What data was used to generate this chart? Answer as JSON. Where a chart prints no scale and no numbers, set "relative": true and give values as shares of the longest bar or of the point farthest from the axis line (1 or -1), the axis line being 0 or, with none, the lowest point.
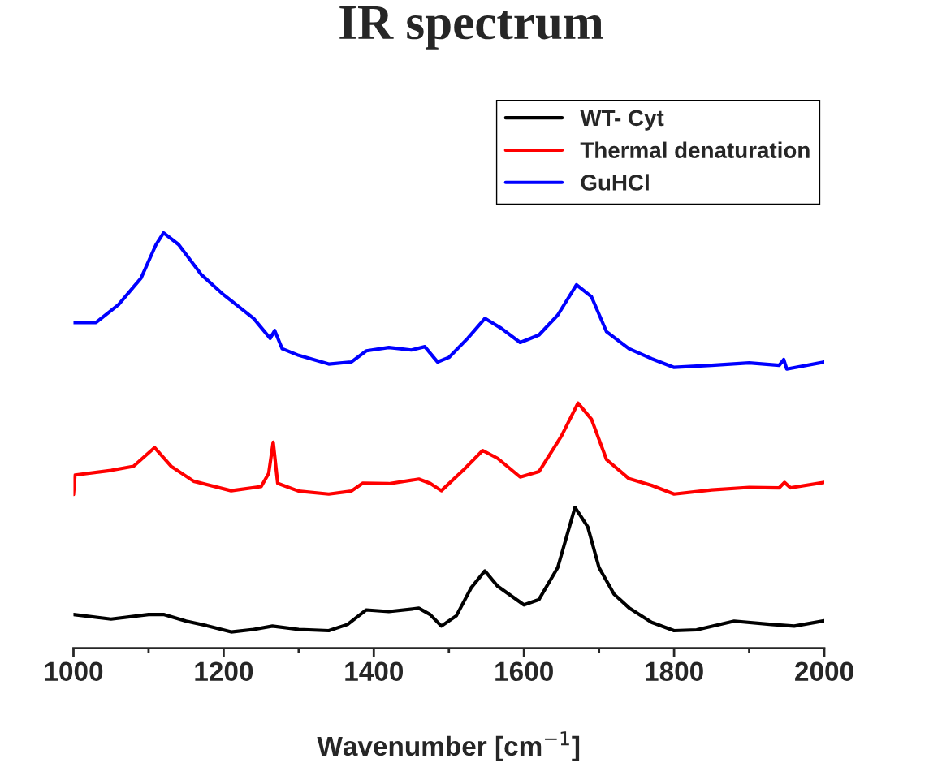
{
  "chart_data": {
    "type": "line",
    "title": "IR spectrum",
    "xlabel": "Wavenumber [cm$^{−1}$]",
    "relative": true,
    "xlim": [
      1000,
      2000
    ],
    "xticks": [
      1000,
      1200,
      1400,
      1600,
      1800,
      2000
    ],
    "grid": false,
    "legend": "top right",
    "marker": "none",
    "line_style": "solid",
    "series": [
      {
        "name": "WT- Cyt",
        "color": "#000000",
        "x": [
          1000,
          1050,
          1100,
          1120,
          1150,
          1180,
          1210,
          1240,
          1265,
          1300,
          1340,
          1365,
          1390,
          1420,
          1460,
          1475,
          1490,
          1510,
          1530,
          1548,
          1565,
          1600,
          1620,
          1645,
          1668,
          1685,
          1700,
          1720,
          1740,
          1770,
          1800,
          1830,
          1880,
          1930,
          1960,
          2000
        ],
        "values": [
          0.081,
          0.07,
          0.081,
          0.081,
          0.065,
          0.053,
          0.039,
          0.045,
          0.053,
          0.045,
          0.042,
          0.057,
          0.092,
          0.088,
          0.096,
          0.081,
          0.053,
          0.078,
          0.146,
          0.186,
          0.149,
          0.104,
          0.117,
          0.194,
          0.339,
          0.292,
          0.194,
          0.13,
          0.097,
          0.062,
          0.042,
          0.044,
          0.065,
          0.057,
          0.053,
          0.066
        ]
      },
      {
        "name": "Thermal denaturation",
        "color": "#ff0000",
        "x": [
          1000,
          1002,
          1050,
          1080,
          1108,
          1130,
          1160,
          1210,
          1250,
          1260,
          1266,
          1272,
          1300,
          1340,
          1370,
          1385,
          1420,
          1460,
          1475,
          1490,
          1520,
          1545,
          1565,
          1595,
          1620,
          1650,
          1672,
          1690,
          1710,
          1740,
          1770,
          1800,
          1850,
          1900,
          1940,
          1947,
          1955,
          2000
        ],
        "values": [
          0.37,
          0.417,
          0.428,
          0.438,
          0.483,
          0.438,
          0.402,
          0.379,
          0.389,
          0.421,
          0.496,
          0.397,
          0.378,
          0.371,
          0.378,
          0.397,
          0.396,
          0.407,
          0.397,
          0.379,
          0.43,
          0.476,
          0.457,
          0.412,
          0.425,
          0.511,
          0.59,
          0.551,
          0.454,
          0.408,
          0.392,
          0.371,
          0.381,
          0.387,
          0.386,
          0.399,
          0.386,
          0.399
        ]
      },
      {
        "name": "GuHCl",
        "color": "#0000ff",
        "x": [
          1000,
          1030,
          1060,
          1090,
          1110,
          1120,
          1140,
          1170,
          1200,
          1240,
          1262,
          1268,
          1278,
          1300,
          1340,
          1370,
          1390,
          1420,
          1450,
          1468,
          1485,
          1500,
          1525,
          1548,
          1570,
          1595,
          1620,
          1645,
          1670,
          1690,
          1710,
          1740,
          1770,
          1800,
          1850,
          1900,
          1940,
          1946,
          1950,
          2000
        ],
        "values": [
          0.784,
          0.784,
          0.827,
          0.891,
          0.972,
          1.0,
          0.972,
          0.9,
          0.851,
          0.794,
          0.746,
          0.765,
          0.721,
          0.705,
          0.684,
          0.689,
          0.716,
          0.724,
          0.718,
          0.726,
          0.689,
          0.7,
          0.746,
          0.794,
          0.77,
          0.736,
          0.754,
          0.802,
          0.875,
          0.846,
          0.762,
          0.721,
          0.697,
          0.676,
          0.681,
          0.687,
          0.681,
          0.695,
          0.672,
          0.689
        ]
      }
    ]
  }
}
